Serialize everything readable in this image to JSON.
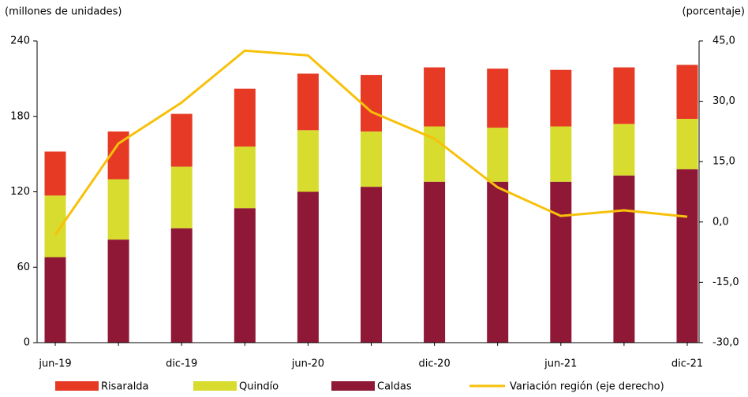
{
  "chart_data": {
    "type": "bar",
    "y_label": "(millones de unidades)",
    "y2_label": "(porcentaje)",
    "categories": [
      "jun-19",
      null,
      "dic-19",
      null,
      "jun-20",
      null,
      "dic-20",
      null,
      "jun-21",
      null,
      "dic-21"
    ],
    "series": [
      {
        "name": "Caldas",
        "color": "#8f1836",
        "values": [
          68,
          82,
          91,
          107,
          120,
          124,
          128,
          128,
          128,
          133,
          138
        ]
      },
      {
        "name": "Quindío",
        "color": "#d7dc2e",
        "values": [
          49,
          48,
          49,
          49,
          49,
          44,
          44,
          43,
          44,
          41,
          40
        ]
      },
      {
        "name": "Risaralda",
        "color": "#e63a25",
        "values": [
          35,
          38,
          42,
          46,
          45,
          45,
          47,
          47,
          45,
          45,
          43
        ]
      },
      {
        "name": "Variación región (eje derecho)",
        "color": "#f7c10a",
        "type": "line",
        "axis": "y2",
        "values": [
          -3.2,
          19.5,
          29.7,
          42.6,
          41.4,
          27.4,
          20.7,
          8.6,
          1.5,
          2.9,
          1.3
        ]
      }
    ],
    "ylim": [
      0,
      240
    ],
    "yticks": [
      0,
      60,
      120,
      180,
      240
    ],
    "y2lim": [
      -30,
      45
    ],
    "y2ticks": [
      {
        "value": -30,
        "label": "-30,0"
      },
      {
        "value": -15,
        "label": "-15,0"
      },
      {
        "value": 0,
        "label": "0,0"
      },
      {
        "value": 15,
        "label": "15,0"
      },
      {
        "value": 30,
        "label": "30,0"
      },
      {
        "value": 45,
        "label": "45,0"
      }
    ],
    "stacked": true,
    "grid": false,
    "legend": "bottom"
  }
}
